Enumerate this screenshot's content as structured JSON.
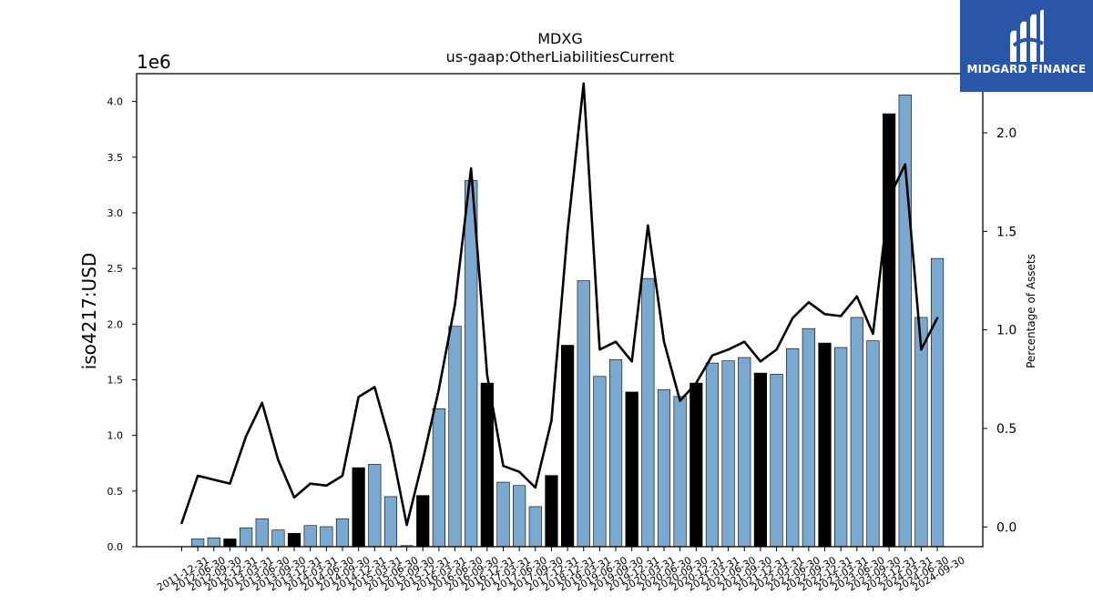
{
  "chart_data": {
    "type": "bar",
    "title": "MDXG",
    "subtitle": "us-gaap:OtherLiabilitiesCurrent",
    "ylabel": "iso4217:USD",
    "y_offset_label": "1e6",
    "y2label": "Percentage of Assets",
    "ylim": [
      0,
      4.25
    ],
    "y_ticks": [
      "0.0",
      "0.5",
      "1.0",
      "1.5",
      "2.0",
      "2.5",
      "3.0",
      "3.5",
      "4.0"
    ],
    "y2lim": [
      -0.1,
      2.3
    ],
    "y2_ticks": [
      "0.0",
      "0.5",
      "1.0",
      "1.5",
      "2.0"
    ],
    "grid": false,
    "categories": [
      "2011-12-31",
      "2012-06-30",
      "2012-09-30",
      "2012-12-31",
      "2013-03-31",
      "2013-06-30",
      "2013-09-30",
      "2013-12-31",
      "2014-03-31",
      "2014-06-30",
      "2014-09-30",
      "2014-12-31",
      "2015-03-31",
      "2015-06-30",
      "2015-09-30",
      "2015-12-31",
      "2016-03-31",
      "2016-06-30",
      "2016-09-30",
      "2016-12-31",
      "2017-03-31",
      "2017-06-30",
      "2017-09-30",
      "2017-12-31",
      "2018-12-31",
      "2019-03-31",
      "2019-06-30",
      "2019-09-30",
      "2019-12-31",
      "2020-03-31",
      "2020-06-30",
      "2020-09-30",
      "2020-12-31",
      "2021-03-31",
      "2021-06-30",
      "2021-09-30",
      "2021-12-31",
      "2022-03-31",
      "2022-06-30",
      "2022-09-30",
      "2022-12-31",
      "2023-03-31",
      "2023-06-30",
      "2023-09-30",
      "2023-12-31",
      "2024-03-31",
      "2024-06-30",
      "2024-09-30"
    ],
    "series": [
      {
        "type": "bar",
        "values": [
          0.0,
          0.07,
          0.08,
          0.07,
          0.17,
          0.25,
          0.15,
          0.12,
          0.19,
          0.18,
          0.25,
          0.71,
          0.74,
          0.45,
          0.01,
          0.46,
          1.24,
          1.98,
          3.29,
          1.47,
          0.58,
          0.55,
          0.36,
          0.64,
          1.81,
          2.39,
          1.53,
          1.68,
          1.39,
          2.41,
          1.41,
          1.35,
          1.47,
          1.65,
          1.67,
          1.7,
          1.56,
          1.55,
          1.78,
          1.96,
          1.83,
          1.79,
          2.06,
          1.85,
          3.89,
          4.06,
          2.06,
          2.59
        ],
        "highlight": [
          false,
          false,
          false,
          true,
          false,
          false,
          false,
          true,
          false,
          false,
          false,
          true,
          false,
          false,
          false,
          true,
          false,
          false,
          false,
          true,
          false,
          false,
          false,
          true,
          true,
          false,
          false,
          false,
          true,
          false,
          false,
          false,
          true,
          false,
          false,
          false,
          true,
          false,
          false,
          false,
          true,
          false,
          false,
          false,
          true,
          false,
          false,
          false
        ]
      },
      {
        "type": "line",
        "axis": "right",
        "values": [
          0.02,
          0.26,
          0.24,
          0.22,
          0.46,
          0.63,
          0.34,
          0.15,
          0.22,
          0.21,
          0.26,
          0.66,
          0.71,
          0.42,
          0.01,
          0.34,
          0.7,
          1.13,
          1.82,
          0.77,
          0.31,
          0.28,
          0.2,
          0.54,
          1.5,
          2.25,
          0.9,
          0.94,
          0.84,
          1.53,
          0.94,
          0.64,
          0.73,
          0.87,
          0.9,
          0.94,
          0.84,
          0.9,
          1.06,
          1.14,
          1.08,
          1.07,
          1.17,
          0.98,
          1.67,
          1.84,
          0.9,
          1.06
        ]
      }
    ],
    "colors": {
      "bar": "#7aa8cf",
      "bar_highlight": "#000000",
      "bar_edge": "#000000",
      "line": "#000000"
    }
  },
  "logo": {
    "text": "MIDGARD FINANCE",
    "background": "#2a56a8"
  }
}
